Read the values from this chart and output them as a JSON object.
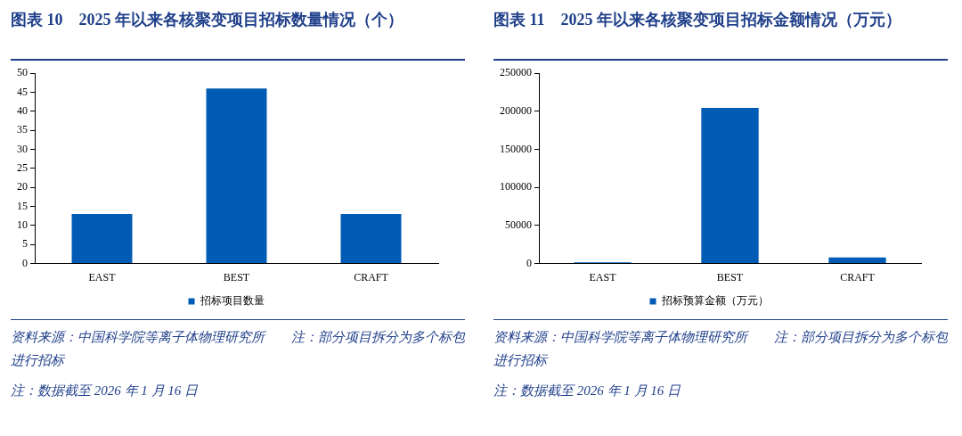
{
  "chart_data": [
    {
      "type": "bar",
      "title": "图表 10　2025 年以来各核聚变项目招标数量情况（个）",
      "categories": [
        "EAST",
        "BEST",
        "CRAFT"
      ],
      "series": [
        {
          "name": "招标项目数量",
          "color": "#005bb5",
          "values": [
            13,
            46,
            13
          ]
        }
      ],
      "ylim": [
        0,
        50
      ],
      "yticks": [
        0,
        5,
        10,
        15,
        20,
        25,
        30,
        35,
        40,
        45,
        50
      ],
      "grid": false,
      "legend": "bottom",
      "annotations": [
        "资料来源：中国科学院等离子体物理研究所　　注：部分项目拆分为多个标包进行招标",
        "注：数据截至 2026 年 1 月 16 日"
      ]
    },
    {
      "type": "bar",
      "title": "图表 11　2025 年以来各核聚变项目招标金额情况（万元）",
      "categories": [
        "EAST",
        "BEST",
        "CRAFT"
      ],
      "series": [
        {
          "name": "招标预算金额（万元）",
          "color": "#005bb5",
          "values": [
            1500,
            204500,
            8000
          ]
        }
      ],
      "ylim": [
        0,
        250000
      ],
      "yticks": [
        0,
        50000,
        100000,
        150000,
        200000,
        250000
      ],
      "grid": false,
      "legend": "bottom",
      "annotations": [
        "资料来源：中国科学院等离子体物理研究所　　注：部分项目拆分为多个标包进行招标",
        "注：数据截至 2026 年 1 月 16 日"
      ]
    }
  ]
}
